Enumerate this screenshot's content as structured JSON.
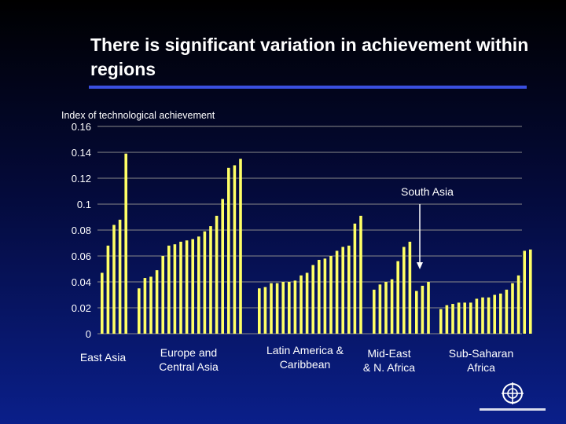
{
  "title": "There is significant variation in achievement within regions",
  "chart_data": {
    "type": "bar",
    "ylabel": "Index of technological achievement",
    "ylim": [
      0,
      0.16
    ],
    "yticks": [
      "0",
      "0.02",
      "0.04",
      "0.06",
      "0.08",
      "0.1",
      "0.12",
      "0.14",
      "0.16"
    ],
    "grid": true,
    "bar_color": "#ffff66",
    "groups": [
      {
        "name": "East Asia",
        "label_lines": [
          "East Asia"
        ],
        "values": [
          0.047,
          0.068,
          0.084,
          0.088,
          0.139
        ]
      },
      {
        "name": "Europe and Central Asia",
        "label_lines": [
          "Europe and",
          "Central Asia"
        ],
        "values": [
          0.035,
          0.043,
          0.044,
          0.049,
          0.06,
          0.068,
          0.069,
          0.071,
          0.072,
          0.073,
          0.075,
          0.079,
          0.083,
          0.091,
          0.104,
          0.128,
          0.13,
          0.135
        ]
      },
      {
        "name": "Latin America & Caribbean",
        "label_lines": [
          "Latin America &",
          "Caribbean"
        ],
        "values": [
          0.035,
          0.036,
          0.039,
          0.039,
          0.04,
          0.04,
          0.041,
          0.045,
          0.047,
          0.053,
          0.057,
          0.058,
          0.06,
          0.064,
          0.067,
          0.068,
          0.085,
          0.091
        ]
      },
      {
        "name": "Mid-East & N. Africa",
        "label_lines": [
          "Mid-East",
          "& N. Africa"
        ],
        "values": [
          0.034,
          0.038,
          0.04,
          0.042,
          0.056,
          0.067,
          0.071
        ]
      },
      {
        "name": "South Asia",
        "label_lines": [],
        "values": [
          0.033,
          0.037,
          0.04
        ]
      },
      {
        "name": "Sub-Saharan Africa",
        "label_lines": [
          "Sub-Saharan",
          "Africa"
        ],
        "values": [
          0.019,
          0.022,
          0.023,
          0.024,
          0.024,
          0.024,
          0.027,
          0.028,
          0.028,
          0.03,
          0.031,
          0.034,
          0.039,
          0.045,
          0.064,
          0.065
        ]
      }
    ],
    "annotation": "South Asia"
  }
}
